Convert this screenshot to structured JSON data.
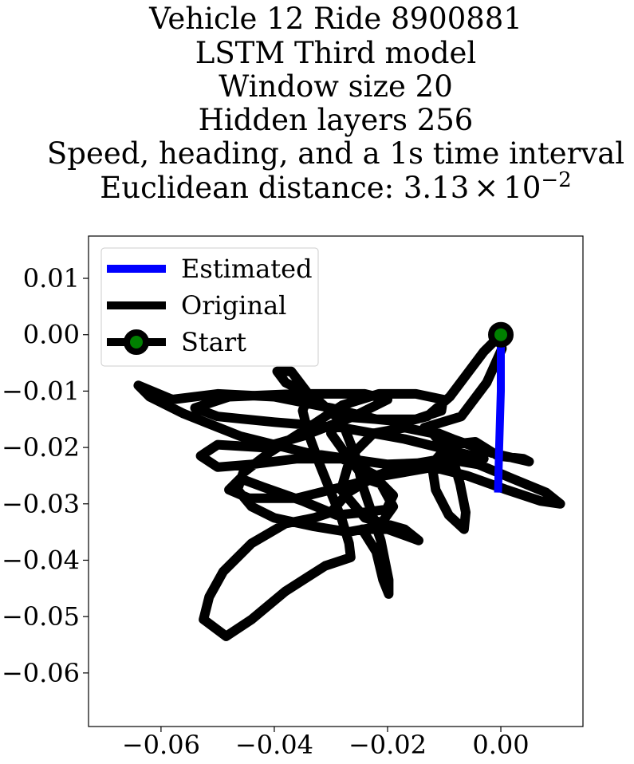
{
  "chart_data": {
    "type": "line",
    "title_lines": [
      "Vehicle 12 Ride 8900881",
      "LSTM Third model",
      "Window size 20",
      "Hidden layers 256",
      "Speed, heading, and a 1s time interval"
    ],
    "distance_line": {
      "prefix": "Euclidean distance: ",
      "mantissa": "3.13",
      "times": "×",
      "base": "10",
      "exponent": "−2"
    },
    "xlim": [
      -0.0728,
      0.0145
    ],
    "ylim": [
      -0.0695,
      0.0175
    ],
    "xticks": [
      -0.06,
      -0.04,
      -0.02,
      0.0
    ],
    "xtick_labels": [
      "−0.06",
      "−0.04",
      "−0.02",
      "0.00"
    ],
    "yticks": [
      0.01,
      0.0,
      -0.01,
      -0.02,
      -0.03,
      -0.04,
      -0.05,
      -0.06
    ],
    "ytick_labels": [
      "0.01",
      "0.00",
      "−0.01",
      "−0.02",
      "−0.03",
      "−0.04",
      "−0.05",
      "−0.06"
    ],
    "legend": {
      "position": "upper-left",
      "entries": [
        "Estimated",
        "Original",
        "Start"
      ]
    },
    "series": [
      {
        "name": "Original",
        "color": "#000000",
        "points": [
          [
            0.0,
            0.0
          ],
          [
            -0.003,
            -0.003
          ],
          [
            -0.006,
            -0.007
          ],
          [
            -0.009,
            -0.011
          ],
          [
            -0.013,
            -0.0145
          ],
          [
            -0.017,
            -0.0155
          ],
          [
            -0.022,
            -0.015
          ],
          [
            -0.03,
            -0.013
          ],
          [
            -0.04,
            -0.011
          ],
          [
            -0.05,
            -0.0105
          ],
          [
            -0.058,
            -0.0115
          ],
          [
            -0.064,
            -0.009
          ],
          [
            -0.062,
            -0.011
          ],
          [
            -0.056,
            -0.014
          ],
          [
            -0.046,
            -0.018
          ],
          [
            -0.034,
            -0.021
          ],
          [
            -0.02,
            -0.023
          ],
          [
            -0.008,
            -0.0225
          ],
          [
            -0.003,
            -0.022
          ],
          [
            -0.009,
            -0.0205
          ],
          [
            -0.017,
            -0.0185
          ],
          [
            -0.028,
            -0.0165
          ],
          [
            -0.04,
            -0.0155
          ],
          [
            -0.05,
            -0.0145
          ],
          [
            -0.054,
            -0.013
          ],
          [
            -0.048,
            -0.011
          ],
          [
            -0.036,
            -0.0105
          ],
          [
            -0.024,
            -0.0105
          ],
          [
            -0.02,
            -0.0115
          ],
          [
            -0.026,
            -0.0145
          ],
          [
            -0.035,
            -0.018
          ],
          [
            -0.042,
            -0.02
          ],
          [
            -0.05,
            -0.0195
          ],
          [
            -0.053,
            -0.0215
          ],
          [
            -0.05,
            -0.0235
          ],
          [
            -0.044,
            -0.023
          ],
          [
            -0.036,
            -0.022
          ],
          [
            -0.028,
            -0.022
          ],
          [
            -0.022,
            -0.025
          ],
          [
            -0.019,
            -0.0305
          ],
          [
            -0.0215,
            -0.034
          ],
          [
            -0.027,
            -0.035
          ],
          [
            -0.033,
            -0.034
          ],
          [
            -0.04,
            -0.0325
          ],
          [
            -0.044,
            -0.0305
          ],
          [
            -0.0465,
            -0.0275
          ],
          [
            -0.0455,
            -0.0245
          ],
          [
            -0.041,
            -0.021
          ],
          [
            -0.034,
            -0.0165
          ],
          [
            -0.028,
            -0.0125
          ],
          [
            -0.0215,
            -0.0105
          ],
          [
            -0.015,
            -0.0105
          ],
          [
            -0.0102,
            -0.0115
          ],
          [
            -0.0105,
            -0.0135
          ],
          [
            -0.015,
            -0.015
          ],
          [
            -0.022,
            -0.015
          ],
          [
            -0.0285,
            -0.0145
          ],
          [
            -0.03,
            -0.0175
          ],
          [
            -0.0275,
            -0.021
          ],
          [
            -0.024,
            -0.0255
          ],
          [
            -0.021,
            -0.0265
          ],
          [
            -0.019,
            -0.0285
          ],
          [
            -0.0202,
            -0.031
          ],
          [
            -0.024,
            -0.0315
          ],
          [
            -0.029,
            -0.032
          ],
          [
            -0.035,
            -0.0295
          ],
          [
            -0.042,
            -0.027
          ],
          [
            -0.046,
            -0.0255
          ],
          [
            -0.048,
            -0.0275
          ],
          [
            -0.0445,
            -0.029
          ],
          [
            -0.036,
            -0.029
          ],
          [
            -0.028,
            -0.027
          ],
          [
            -0.0205,
            -0.025
          ],
          [
            -0.012,
            -0.0235
          ],
          [
            -0.006,
            -0.025
          ],
          [
            0.001,
            -0.0275
          ],
          [
            0.007,
            -0.0295
          ],
          [
            0.0105,
            -0.03
          ],
          [
            0.008,
            -0.028
          ],
          [
            0.002,
            -0.0255
          ],
          [
            -0.004,
            -0.023
          ],
          [
            -0.01,
            -0.022
          ],
          [
            -0.016,
            -0.023
          ],
          [
            -0.022,
            -0.025
          ],
          [
            -0.027,
            -0.028
          ],
          [
            -0.03,
            -0.0315
          ],
          [
            -0.033,
            -0.0325
          ],
          [
            -0.038,
            -0.0335
          ],
          [
            -0.044,
            -0.037
          ],
          [
            -0.049,
            -0.042
          ],
          [
            -0.0515,
            -0.0465
          ],
          [
            -0.0525,
            -0.0505
          ],
          [
            -0.0485,
            -0.0535
          ],
          [
            -0.044,
            -0.0505
          ],
          [
            -0.038,
            -0.0455
          ],
          [
            -0.031,
            -0.041
          ],
          [
            -0.0265,
            -0.0395
          ],
          [
            -0.0268,
            -0.037
          ],
          [
            -0.028,
            -0.033
          ],
          [
            -0.03,
            -0.028
          ],
          [
            -0.032,
            -0.023
          ],
          [
            -0.034,
            -0.0175
          ],
          [
            -0.035,
            -0.0135
          ],
          [
            -0.034,
            -0.0105
          ],
          [
            -0.037,
            -0.0065
          ],
          [
            -0.0395,
            -0.0065
          ],
          [
            -0.038,
            -0.0085
          ],
          [
            -0.033,
            -0.011
          ],
          [
            -0.028,
            -0.0155
          ],
          [
            -0.0255,
            -0.022
          ],
          [
            -0.0245,
            -0.0265
          ],
          [
            -0.023,
            -0.031
          ],
          [
            -0.0212,
            -0.0365
          ],
          [
            -0.0198,
            -0.0435
          ],
          [
            -0.0198,
            -0.046
          ],
          [
            -0.0208,
            -0.0435
          ],
          [
            -0.022,
            -0.0385
          ],
          [
            -0.0245,
            -0.0345
          ],
          [
            -0.02,
            -0.0345
          ],
          [
            -0.0145,
            -0.0365
          ],
          [
            -0.017,
            -0.0345
          ],
          [
            -0.024,
            -0.0325
          ],
          [
            -0.0282,
            -0.0275
          ],
          [
            -0.0265,
            -0.0215
          ],
          [
            -0.0225,
            -0.0175
          ],
          [
            -0.017,
            -0.0165
          ],
          [
            -0.012,
            -0.0175
          ],
          [
            -0.0085,
            -0.022
          ],
          [
            -0.0072,
            -0.0265
          ],
          [
            -0.0062,
            -0.0315
          ],
          [
            -0.0065,
            -0.0345
          ],
          [
            -0.0092,
            -0.032
          ],
          [
            -0.0115,
            -0.0275
          ],
          [
            -0.0122,
            -0.023
          ],
          [
            -0.0092,
            -0.0195
          ],
          [
            -0.0045,
            -0.019
          ],
          [
            -0.0005,
            -0.0215
          ],
          [
            0.004,
            -0.022
          ],
          [
            0.005,
            -0.0225
          ],
          [
            -0.0015,
            -0.021
          ],
          [
            -0.0085,
            -0.0185
          ],
          [
            -0.0135,
            -0.0165
          ],
          [
            -0.007,
            -0.0145
          ],
          [
            -0.0025,
            -0.0085
          ],
          [
            0.0002,
            -0.0025
          ],
          [
            0.0,
            0.0
          ]
        ]
      },
      {
        "name": "Estimated",
        "color": "#0000ff",
        "points": [
          [
            0.0,
            0.0
          ],
          [
            0.0,
            -0.01
          ],
          [
            -0.0003,
            -0.02
          ],
          [
            -0.0005,
            -0.028
          ]
        ]
      },
      {
        "name": "Start",
        "color": "#000000",
        "marker_color": "#008000",
        "points": [
          [
            0.0,
            0.0
          ]
        ]
      }
    ]
  }
}
